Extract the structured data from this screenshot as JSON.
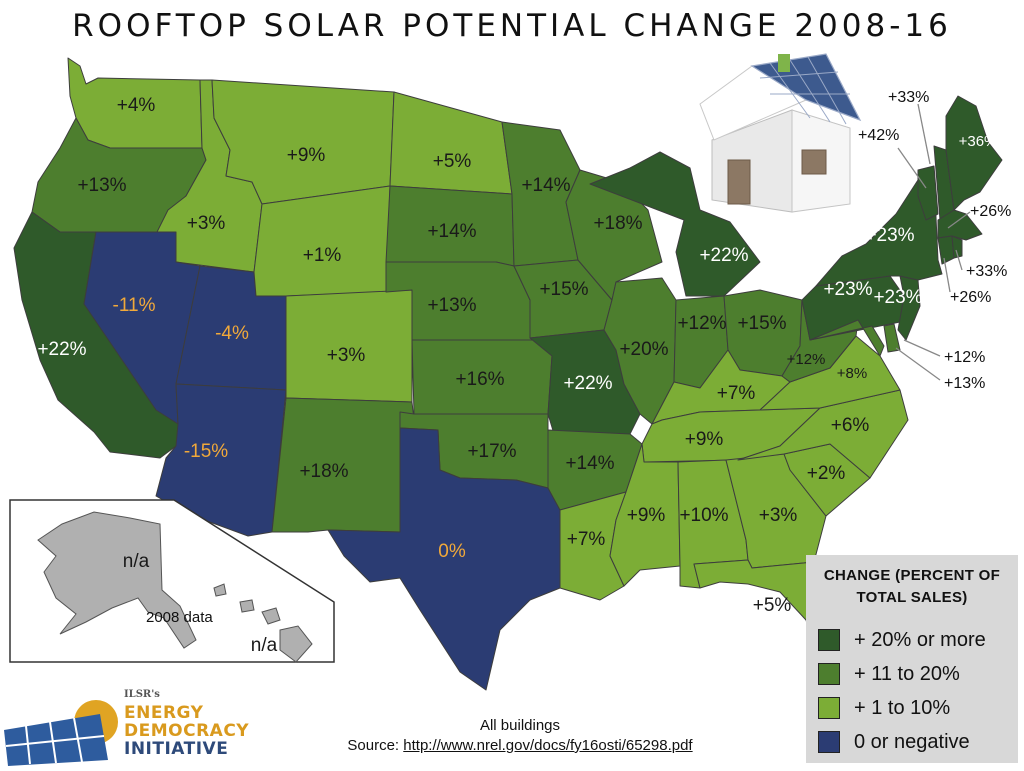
{
  "title": "ROOFTOP SOLAR POTENTIAL CHANGE 2008-16",
  "colors": {
    "dark": "#2f5a2a",
    "medium": "#4d7e2e",
    "light": "#7cad36",
    "negative": "#2b3c73",
    "legend_bg": "#d8d8d8",
    "negative_label": "#f1a93a"
  },
  "legend": {
    "title_line1": "CHANGE (PERCENT OF",
    "title_line2": "TOTAL SALES)",
    "items": [
      {
        "label": "+ 20% or more",
        "category": "dark"
      },
      {
        "label": "+ 11 to 20%",
        "category": "medium"
      },
      {
        "label": "+ 1 to 10%",
        "category": "light"
      },
      {
        "label": "0 or negative",
        "category": "negative"
      }
    ]
  },
  "states": {
    "WA": {
      "label": "+4%",
      "category": "light"
    },
    "OR": {
      "label": "+13%",
      "category": "medium"
    },
    "CA": {
      "label": "+22%",
      "category": "dark"
    },
    "ID": {
      "label": "+3%",
      "category": "light"
    },
    "NV": {
      "label": "-11%",
      "category": "negative"
    },
    "UT": {
      "label": "-4%",
      "category": "negative"
    },
    "AZ": {
      "label": "-15%",
      "category": "negative"
    },
    "MT": {
      "label": "+9%",
      "category": "light"
    },
    "WY": {
      "label": "+1%",
      "category": "light"
    },
    "CO": {
      "label": "+3%",
      "category": "light"
    },
    "NM": {
      "label": "+18%",
      "category": "medium"
    },
    "ND": {
      "label": "+5%",
      "category": "light"
    },
    "SD": {
      "label": "+14%",
      "category": "medium"
    },
    "NE": {
      "label": "+13%",
      "category": "medium"
    },
    "KS": {
      "label": "+16%",
      "category": "medium"
    },
    "OK": {
      "label": "+17%",
      "category": "medium"
    },
    "TX": {
      "label": "0%",
      "category": "negative"
    },
    "MN": {
      "label": "+14%",
      "category": "medium"
    },
    "IA": {
      "label": "+15%",
      "category": "medium"
    },
    "MO": {
      "label": "+22%",
      "category": "dark"
    },
    "AR": {
      "label": "+14%",
      "category": "medium"
    },
    "LA": {
      "label": "+7%",
      "category": "light"
    },
    "WI": {
      "label": "+18%",
      "category": "medium"
    },
    "IL": {
      "label": "+20%",
      "category": "medium"
    },
    "MI": {
      "label": "+22%",
      "category": "dark"
    },
    "IN": {
      "label": "+12%",
      "category": "medium"
    },
    "OH": {
      "label": "+15%",
      "category": "medium"
    },
    "KY": {
      "label": "+7%",
      "category": "light"
    },
    "TN": {
      "label": "+9%",
      "category": "light"
    },
    "MS": {
      "label": "+9%",
      "category": "light"
    },
    "AL": {
      "label": "+10%",
      "category": "light"
    },
    "GA": {
      "label": "+3%",
      "category": "light"
    },
    "FL": {
      "label": "+5%",
      "category": "light"
    },
    "SC": {
      "label": "+2%",
      "category": "light"
    },
    "NC": {
      "label": "+6%",
      "category": "light"
    },
    "VA": {
      "label": "+8%",
      "category": "light"
    },
    "WV": {
      "label": "+12%",
      "category": "medium"
    },
    "PA": {
      "label": "+23%",
      "category": "dark"
    },
    "NY": {
      "label": "+23%",
      "category": "dark"
    },
    "NJ": {
      "label": "+23%",
      "category": "dark"
    },
    "MD": {
      "label": "+12%",
      "category": "medium"
    },
    "DE": {
      "label": "+13%",
      "category": "medium"
    },
    "VT": {
      "label": "+42%",
      "category": "dark"
    },
    "NH": {
      "label": "+33%",
      "category": "dark"
    },
    "ME": {
      "label": "+36%",
      "category": "dark"
    },
    "MA": {
      "label": "+26%",
      "category": "dark"
    },
    "RI": {
      "label": "+33%",
      "category": "dark"
    },
    "CT": {
      "label": "+26%",
      "category": "dark"
    },
    "AK": {
      "label": "n/a"
    },
    "HI": {
      "label": "n/a"
    }
  },
  "alaska_note": "2008 data",
  "footer": {
    "line1": "All buildings",
    "source_prefix": "Source: ",
    "source_link": "http://www.nrel.gov/docs/fy16osti/65298.pdf"
  },
  "logo": {
    "brand": "ILSR's",
    "line1": "ENERGY",
    "line2": "DEMOCRACY",
    "line3": "INITIATIVE",
    "line1_color": "#d99a1e",
    "line2_color": "#d99a1e",
    "line3_color": "#2e4a7a"
  }
}
